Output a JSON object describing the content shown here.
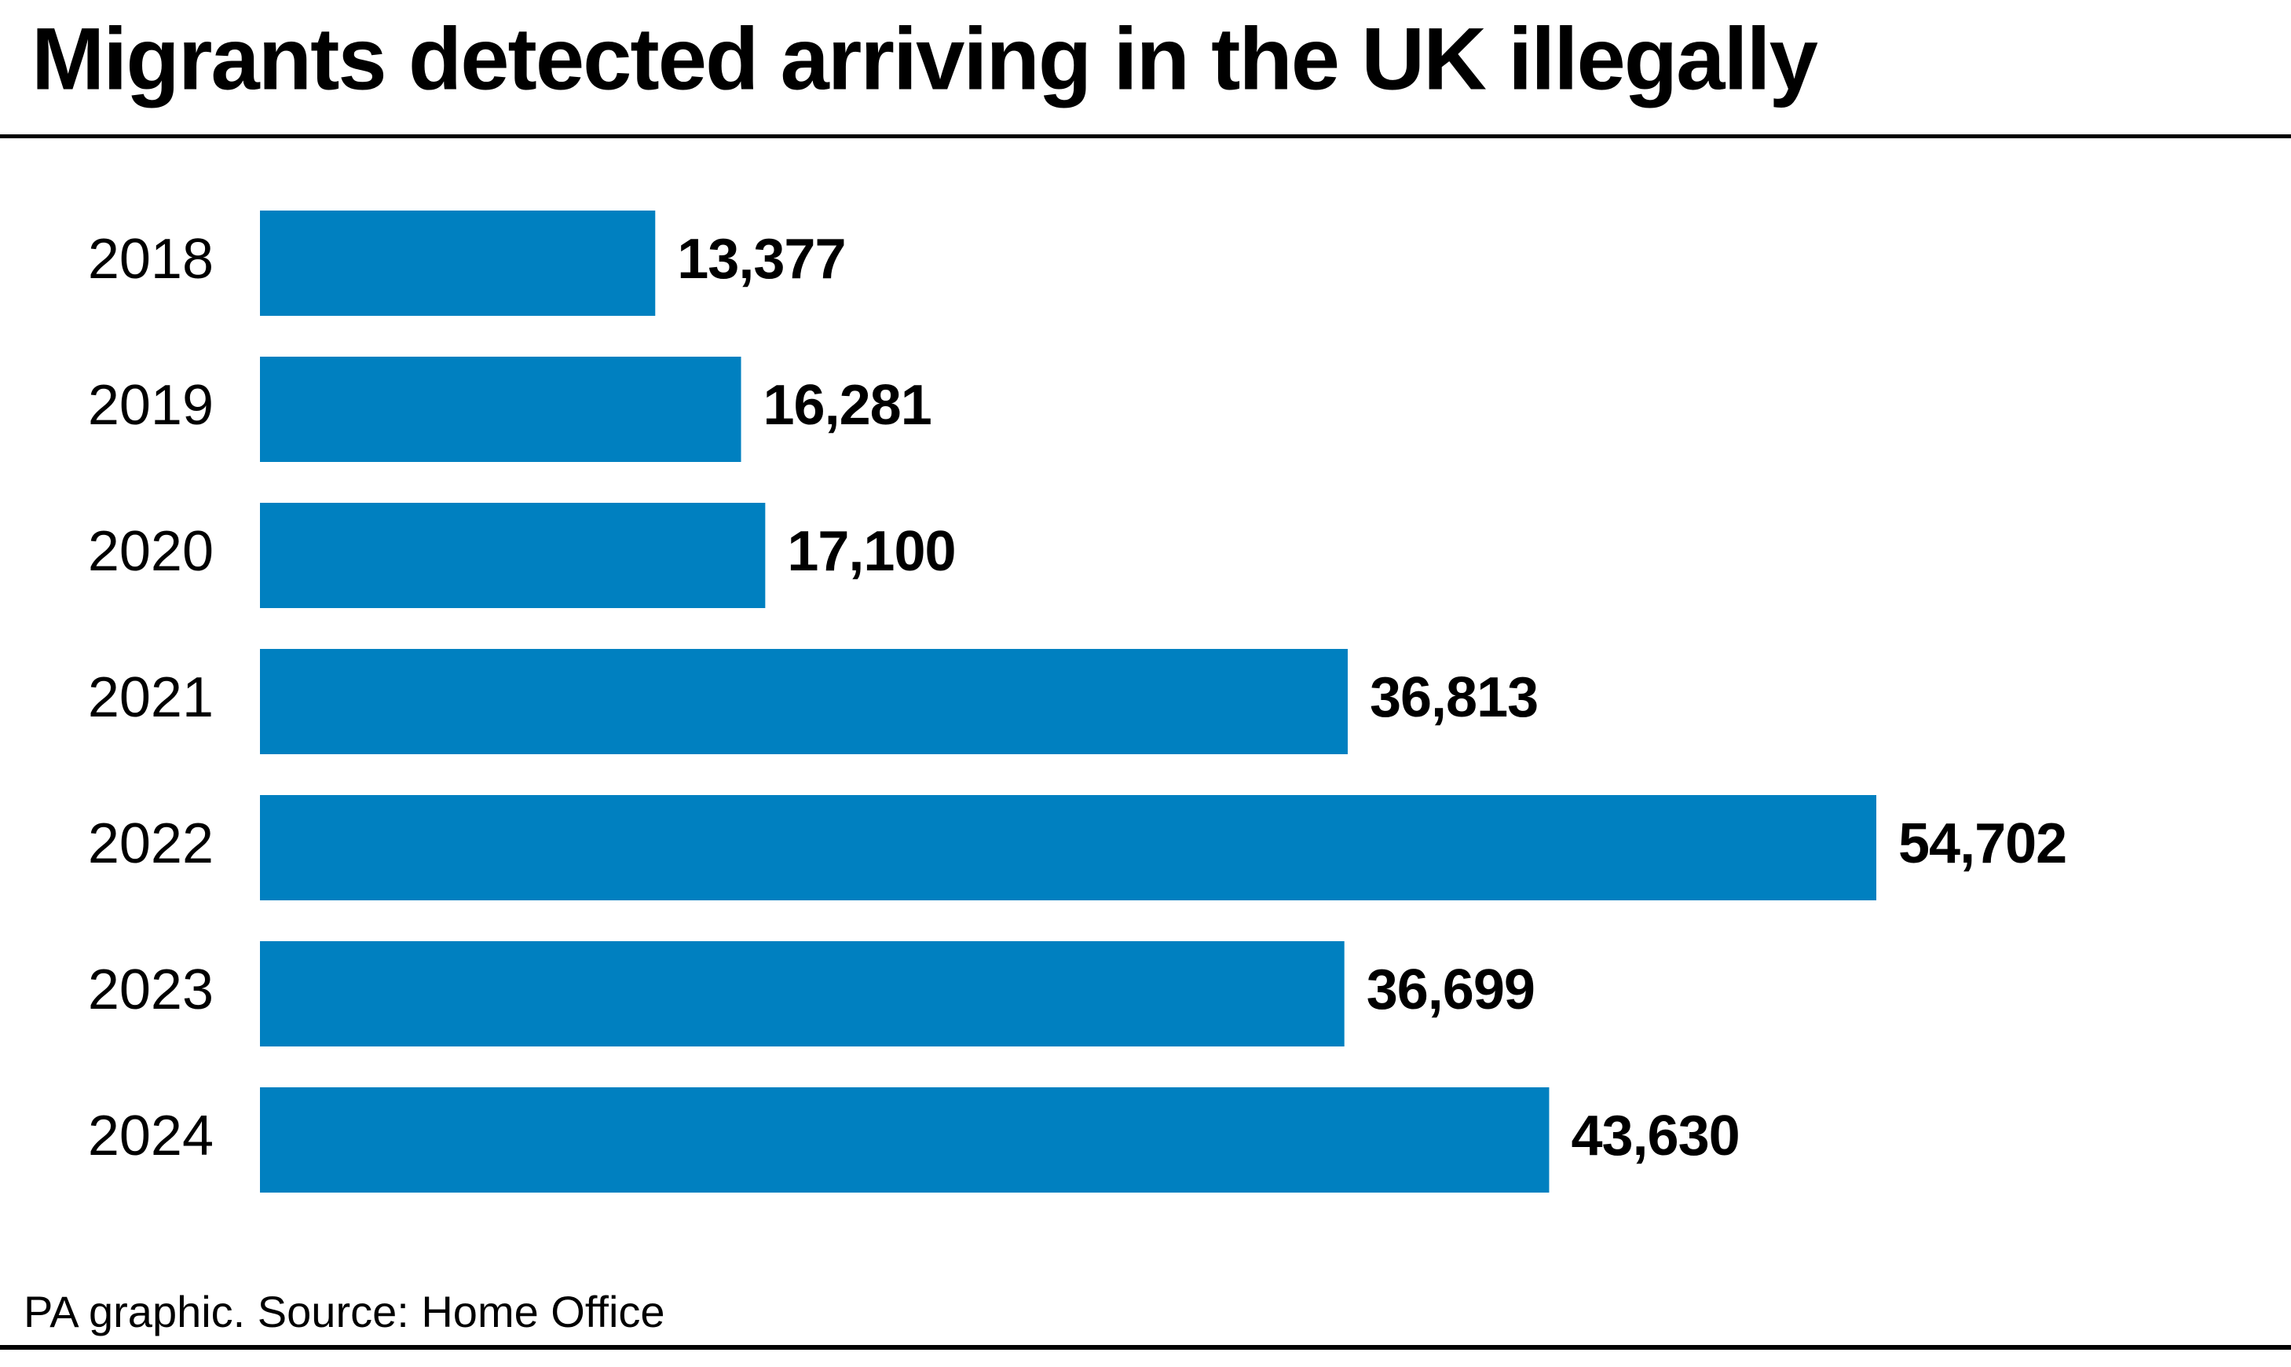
{
  "chart_data": {
    "type": "bar",
    "orientation": "horizontal",
    "title": "Migrants detected arriving in the UK illegally",
    "categories": [
      "2018",
      "2019",
      "2020",
      "2021",
      "2022",
      "2023",
      "2024"
    ],
    "values": [
      13377,
      16281,
      17100,
      36813,
      54702,
      36699,
      43630
    ],
    "value_labels": [
      "13,377",
      "16,281",
      "17,100",
      "36,813",
      "54,702",
      "36,699",
      "43,630"
    ],
    "color": "#0080c0",
    "source": "PA graphic. Source: Home Office"
  }
}
